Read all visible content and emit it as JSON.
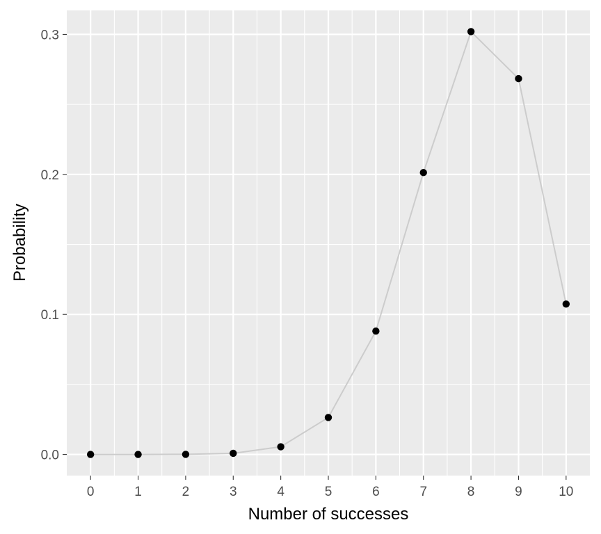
{
  "chart_data": {
    "type": "line",
    "title": "",
    "xlabel": "Number of successes",
    "ylabel": "Probability",
    "x": [
      0,
      1,
      2,
      3,
      4,
      5,
      6,
      7,
      8,
      9,
      10
    ],
    "series": [
      {
        "name": "",
        "values": [
          0.0,
          0.0,
          0.0001,
          0.0008,
          0.0055,
          0.0264,
          0.0881,
          0.2013,
          0.302,
          0.2684,
          0.1074
        ]
      }
    ],
    "markers": true,
    "xlim": [
      -0.5,
      10.5
    ],
    "ylim": [
      -0.0151,
      0.3171
    ],
    "xticks": [
      0,
      1,
      2,
      3,
      4,
      5,
      6,
      7,
      8,
      9,
      10
    ],
    "yticks": [
      0.0,
      0.1,
      0.2,
      0.3
    ],
    "xtick_labels": [
      "0",
      "1",
      "2",
      "3",
      "4",
      "5",
      "6",
      "7",
      "8",
      "9",
      "10"
    ],
    "ytick_labels": [
      "0.0",
      "0.1",
      "0.2",
      "0.3"
    ],
    "grid": true,
    "colors": {
      "panel_background": "#ebebeb",
      "grid_major": "#ffffff",
      "line": "#cccccc",
      "points": "#000000",
      "tick_text": "#4d4d4d",
      "axis_title": "#000000"
    }
  }
}
